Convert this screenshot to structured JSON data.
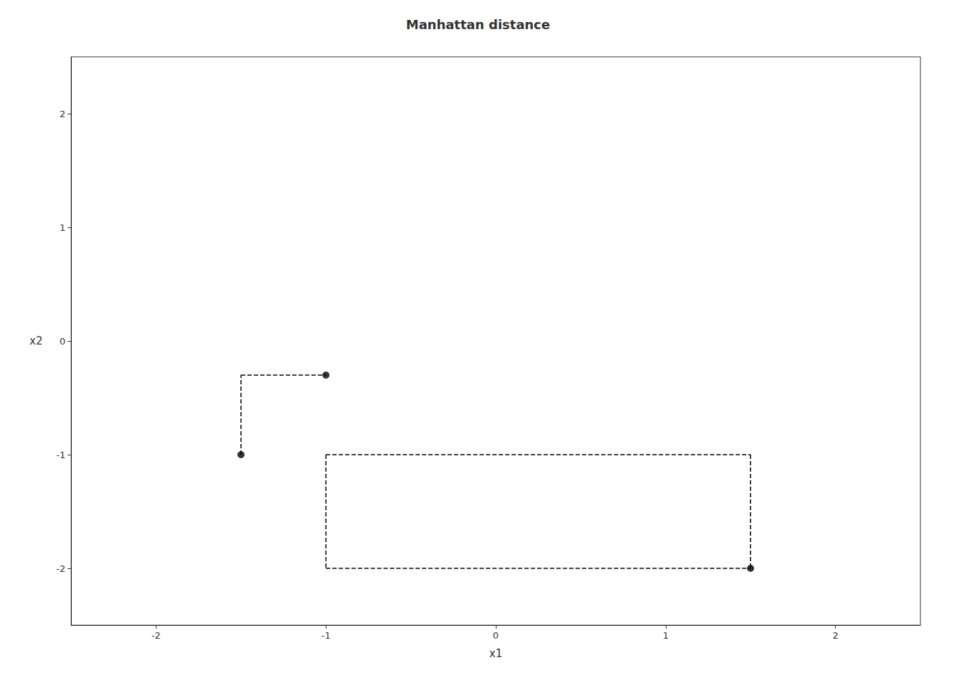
{
  "chart_data": {
    "type": "scatter",
    "title": "Manhattan distance",
    "xlabel": "x1",
    "ylabel": "x2",
    "xlim": [
      -2.5,
      2.5
    ],
    "ylim": [
      -2.5,
      2.5
    ],
    "xticks": [
      -2,
      -1,
      0,
      1,
      2
    ],
    "yticks": [
      -2,
      -1,
      0,
      1,
      2
    ],
    "grid": false,
    "series": [
      {
        "type": "scatter",
        "color": "#000000",
        "marker": "circle",
        "x": [
          -1.5,
          -1.0,
          1.5
        ],
        "values": [
          -1.0,
          -0.3,
          -2.0
        ]
      },
      {
        "type": "line",
        "color": "#000000",
        "line_style": "dashed",
        "segments": [
          [
            [
              -1.5,
              -1.0
            ],
            [
              -1.5,
              -0.3
            ]
          ],
          [
            [
              -1.5,
              -0.3
            ],
            [
              -1.0,
              -0.3
            ]
          ],
          [
            [
              -1.0,
              -1.0
            ],
            [
              1.5,
              -1.0
            ]
          ],
          [
            [
              1.5,
              -1.0
            ],
            [
              1.5,
              -2.0
            ]
          ],
          [
            [
              -1.0,
              -2.0
            ],
            [
              1.5,
              -2.0
            ]
          ],
          [
            [
              -1.0,
              -1.0
            ],
            [
              -1.0,
              -2.0
            ]
          ]
        ]
      }
    ]
  }
}
